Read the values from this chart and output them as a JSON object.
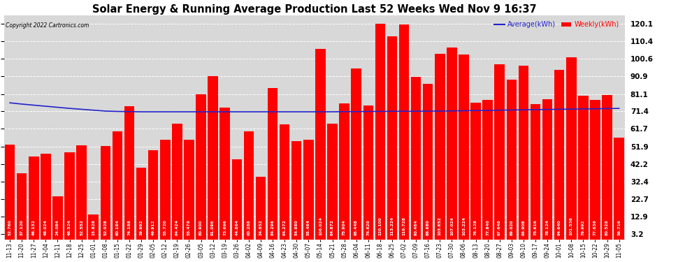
{
  "title": "Solar Energy & Running Average Production Last 52 Weeks Wed Nov 9 16:37",
  "copyright": "Copyright 2022 Cartronics.com",
  "legend_avg": "Average(kWh)",
  "legend_weekly": "Weekly(kWh)",
  "bar_color": "#ff0000",
  "avg_line_color": "#2222cc",
  "background_color": "#ffffff",
  "plot_bg_color": "#d8d8d8",
  "grid_color": "#ffffff",
  "yticks": [
    3.2,
    12.9,
    22.7,
    32.4,
    42.2,
    51.9,
    61.7,
    71.4,
    81.1,
    90.9,
    100.6,
    110.4,
    120.1
  ],
  "ylim": [
    0,
    125
  ],
  "categories": [
    "11-13",
    "11-20",
    "11-27",
    "12-04",
    "12-11",
    "12-18",
    "12-25",
    "01-01",
    "01-08",
    "01-15",
    "01-22",
    "01-29",
    "02-05",
    "02-12",
    "02-19",
    "02-26",
    "03-05",
    "03-12",
    "03-19",
    "03-26",
    "04-02",
    "04-09",
    "04-16",
    "04-23",
    "04-30",
    "05-07",
    "05-14",
    "05-21",
    "05-28",
    "06-04",
    "06-11",
    "06-18",
    "06-25",
    "07-02",
    "07-09",
    "07-16",
    "07-23",
    "07-30",
    "08-06",
    "08-13",
    "08-20",
    "08-27",
    "09-03",
    "09-10",
    "09-17",
    "09-24",
    "10-01",
    "10-08",
    "10-15",
    "10-22",
    "10-29",
    "11-05"
  ],
  "weekly_values": [
    52.76,
    37.12,
    46.132,
    48.024,
    24.084,
    48.524,
    52.552,
    13.828,
    52.028,
    60.184,
    74.188,
    39.992,
    49.912,
    55.72,
    64.424,
    55.476,
    80.9,
    91.096,
    73.696,
    44.864,
    60.288,
    34.852,
    84.296,
    64.272,
    54.98,
    55.464,
    106.024,
    64.672,
    75.904,
    95.448,
    74.62,
    120.1,
    113.224,
    119.728,
    90.464,
    86.68,
    103.652,
    107.024,
    103.224,
    76.128,
    77.84,
    97.648,
    89.02,
    96.908,
    75.616,
    78.124,
    94.64,
    101.536,
    79.992,
    77.636,
    80.528,
    56.716
  ],
  "bar_labels": [
    "52.760",
    "37.120",
    "46.132",
    "48.024",
    "24.084",
    "48.524",
    "52.552",
    "13.828",
    "52.028",
    "60.184",
    "74.188",
    "39.992",
    "49.912",
    "55.720",
    "64.424",
    "55.476",
    "80.900",
    "91.096",
    "73.696",
    "44.864",
    "60.288",
    "34.852",
    "84.296",
    "64.272",
    "54.980",
    "55.464",
    "106.024",
    "64.672",
    "75.904",
    "95.448",
    "74.620",
    "120.100",
    "113.224",
    "119.728",
    "90.464",
    "86.680",
    "103.652",
    "107.024",
    "103.224",
    "76.128",
    "77.840",
    "97.648",
    "89.020",
    "96.908",
    "75.616",
    "78.124",
    "94.640",
    "101.536",
    "79.992",
    "77.636",
    "80.528",
    "56.716"
  ],
  "avg_values": [
    76.2,
    75.5,
    74.9,
    74.3,
    73.7,
    73.1,
    72.6,
    72.1,
    71.6,
    71.4,
    71.3,
    71.2,
    71.2,
    71.2,
    71.2,
    71.2,
    71.2,
    71.2,
    71.2,
    71.2,
    71.2,
    71.2,
    71.2,
    71.2,
    71.2,
    71.2,
    71.2,
    71.2,
    71.3,
    71.3,
    71.4,
    71.4,
    71.5,
    71.5,
    71.5,
    71.6,
    71.6,
    71.7,
    71.8,
    71.9,
    72.0,
    72.1,
    72.2,
    72.3,
    72.4,
    72.5,
    72.6,
    72.7,
    72.8,
    72.9,
    73.0,
    73.1
  ]
}
